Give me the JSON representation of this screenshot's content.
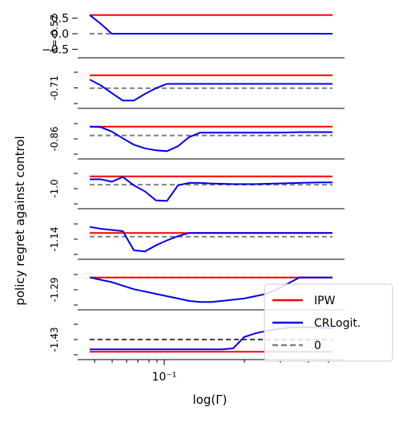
{
  "chart_data": {
    "type": "line",
    "ylabel": "policy regret against control",
    "xlabel": "log(Γ)",
    "x_scale": "log",
    "x_tick_label": "10⁻¹",
    "x_tick_value": 0.1,
    "panels": [
      {
        "label": "λ=-0.57",
        "yticks": [
          "0.5",
          "0.0",
          "−0.5"
        ],
        "series": [
          {
            "name": "IPW",
            "color": "#ff0000",
            "values": [
              0.6,
              0.6,
              0.6,
              0.6,
              0.6,
              0.6,
              0.6,
              0.6,
              0.6,
              0.6,
              0.6,
              0.6,
              0.6,
              0.6,
              0.6,
              0.6,
              0.6,
              0.6,
              0.6,
              0.6,
              0.6,
              0.6,
              0.6
            ]
          },
          {
            "name": "CRLogit.",
            "color": "#0000ee",
            "values": [
              0.6,
              0.32,
              0.0,
              0.0,
              0.0,
              0.0,
              0.0,
              0.0,
              0.0,
              0.0,
              0.0,
              0.0,
              0.0,
              0.0,
              0.0,
              0.0,
              0.0,
              0.0,
              0.0,
              0.0,
              0.0,
              0.0,
              0.0
            ]
          },
          {
            "name": "0",
            "color": "#808080",
            "dashed": true,
            "values": [
              0.0,
              0.0,
              0.0,
              0.0,
              0.0,
              0.0,
              0.0,
              0.0,
              0.0,
              0.0,
              0.0,
              0.0,
              0.0,
              0.0,
              0.0,
              0.0,
              0.0,
              0.0,
              0.0,
              0.0,
              0.0,
              0.0,
              0.0
            ]
          }
        ]
      },
      {
        "label": "-0.71",
        "yticks": [],
        "series": [
          {
            "name": "IPW",
            "color": "#ff0000",
            "values": [
              1.0,
              1.0,
              1.0,
              1.0,
              1.0,
              1.0,
              1.0,
              1.0,
              1.0,
              1.0,
              1.0,
              1.0,
              1.0,
              1.0,
              1.0,
              1.0,
              1.0,
              1.0,
              1.0,
              1.0,
              1.0,
              1.0,
              1.0
            ]
          },
          {
            "name": "CRLogit.",
            "color": "#0000ee",
            "values": [
              0.85,
              0.65,
              0.38,
              0.12,
              0.12,
              0.35,
              0.55,
              0.7,
              0.7,
              0.7,
              0.7,
              0.7,
              0.7,
              0.7,
              0.7,
              0.7,
              0.7,
              0.7,
              0.7,
              0.7,
              0.7,
              0.7,
              0.7
            ]
          },
          {
            "name": "0",
            "color": "#808080",
            "dashed": true,
            "values": [
              0.55,
              0.55,
              0.55,
              0.55,
              0.55,
              0.55,
              0.55,
              0.55,
              0.55,
              0.55,
              0.55,
              0.55,
              0.55,
              0.55,
              0.55,
              0.55,
              0.55,
              0.55,
              0.55,
              0.55,
              0.55,
              0.55,
              0.55
            ]
          }
        ]
      },
      {
        "label": "-0.86",
        "yticks": [],
        "series": [
          {
            "name": "IPW",
            "color": "#ff0000",
            "values": [
              1.0,
              1.0,
              1.0,
              1.0,
              1.0,
              1.0,
              1.0,
              1.0,
              1.0,
              1.0,
              1.0,
              1.0,
              1.0,
              1.0,
              1.0,
              1.0,
              1.0,
              1.0,
              1.0,
              1.0,
              1.0,
              1.0,
              1.0
            ]
          },
          {
            "name": "CRLogit.",
            "color": "#0000ee",
            "values": [
              1.0,
              0.98,
              0.82,
              0.58,
              0.35,
              0.22,
              0.15,
              0.12,
              0.3,
              0.62,
              0.78,
              0.78,
              0.78,
              0.78,
              0.78,
              0.78,
              0.78,
              0.78,
              0.79,
              0.8,
              0.8,
              0.8,
              0.8
            ]
          },
          {
            "name": "0",
            "color": "#808080",
            "dashed": true,
            "values": [
              0.68,
              0.68,
              0.68,
              0.68,
              0.68,
              0.68,
              0.68,
              0.68,
              0.68,
              0.68,
              0.68,
              0.68,
              0.68,
              0.68,
              0.68,
              0.68,
              0.68,
              0.68,
              0.68,
              0.68,
              0.68,
              0.68,
              0.68
            ]
          }
        ]
      },
      {
        "label": "-1.0",
        "yticks": [],
        "series": [
          {
            "name": "IPW",
            "color": "#ff0000",
            "values": [
              1.0,
              1.0,
              1.0,
              1.0,
              1.0,
              1.0,
              1.0,
              1.0,
              1.0,
              1.0,
              1.0,
              1.0,
              1.0,
              1.0,
              1.0,
              1.0,
              1.0,
              1.0,
              1.0,
              1.0,
              1.0,
              1.0,
              1.0
            ]
          },
          {
            "name": "CRLogit.",
            "color": "#0000ee",
            "values": [
              0.9,
              0.9,
              0.82,
              0.98,
              0.7,
              0.5,
              0.2,
              0.18,
              0.7,
              0.78,
              0.78,
              0.76,
              0.75,
              0.74,
              0.74,
              0.74,
              0.75,
              0.76,
              0.77,
              0.78,
              0.79,
              0.8,
              0.8
            ]
          },
          {
            "name": "0",
            "color": "#808080",
            "dashed": true,
            "values": [
              0.72,
              0.72,
              0.72,
              0.72,
              0.72,
              0.72,
              0.72,
              0.72,
              0.72,
              0.72,
              0.72,
              0.72,
              0.72,
              0.72,
              0.72,
              0.72,
              0.72,
              0.72,
              0.72,
              0.72,
              0.72,
              0.72,
              0.72
            ]
          }
        ]
      },
      {
        "label": "-1.14",
        "yticks": [],
        "series": [
          {
            "name": "IPW",
            "color": "#ff0000",
            "values": [
              1.0,
              1.0,
              1.0,
              1.0,
              1.0,
              1.0,
              1.0,
              1.0,
              1.0,
              1.0,
              1.0,
              1.0,
              1.0,
              1.0,
              1.0,
              1.0,
              1.0,
              1.0,
              1.0,
              1.0,
              1.0,
              1.0,
              1.0
            ]
          },
          {
            "name": "CRLogit.",
            "color": "#0000ee",
            "values": [
              1.1,
              1.07,
              1.05,
              1.03,
              0.72,
              0.7,
              0.8,
              0.88,
              0.95,
              1.0,
              1.0,
              1.0,
              1.0,
              1.0,
              1.0,
              1.0,
              1.0,
              1.0,
              1.0,
              1.0,
              1.0,
              1.0,
              1.0
            ]
          },
          {
            "name": "0",
            "color": "#808080",
            "dashed": true,
            "values": [
              0.94,
              0.94,
              0.94,
              0.94,
              0.94,
              0.94,
              0.94,
              0.94,
              0.94,
              0.94,
              0.94,
              0.94,
              0.94,
              0.94,
              0.94,
              0.94,
              0.94,
              0.94,
              0.94,
              0.94,
              0.94,
              0.94,
              0.94
            ]
          }
        ]
      },
      {
        "label": "-1.29",
        "yticks": [],
        "series": [
          {
            "name": "IPW",
            "color": "#ff0000",
            "values": [
              1.0,
              1.0,
              1.0,
              1.0,
              1.0,
              1.0,
              1.0,
              1.0,
              1.0,
              1.0,
              1.0,
              1.0,
              1.0,
              1.0,
              1.0,
              1.0,
              1.0,
              1.0,
              1.0,
              1.0,
              1.0,
              1.0,
              1.0
            ]
          },
          {
            "name": "CRLogit.",
            "color": "#0000ee",
            "values": [
              1.0,
              0.98,
              0.96,
              0.93,
              0.9,
              0.88,
              0.86,
              0.84,
              0.82,
              0.8,
              0.79,
              0.79,
              0.8,
              0.81,
              0.82,
              0.84,
              0.86,
              0.9,
              0.95,
              1.0,
              1.0,
              1.0,
              1.0
            ]
          },
          {
            "name": "0",
            "color": "#808080",
            "dashed": true,
            "values": [
              1.0,
              1.0,
              1.0,
              1.0,
              1.0,
              1.0,
              1.0,
              1.0,
              1.0,
              1.0,
              1.0,
              1.0,
              1.0,
              1.0,
              1.0,
              1.0,
              1.0,
              1.0,
              1.0,
              1.0,
              1.0,
              1.0,
              1.0
            ]
          }
        ]
      },
      {
        "label": "-1.43",
        "yticks": [],
        "series": [
          {
            "name": "IPW",
            "color": "#ff0000",
            "values": [
              0.0,
              0.0,
              0.0,
              0.0,
              0.0,
              0.0,
              0.0,
              0.0,
              0.0,
              0.0,
              0.0,
              0.0,
              0.0,
              0.0,
              0.0,
              0.0,
              0.0,
              0.0,
              0.0,
              0.0,
              0.0,
              0.0,
              0.0
            ]
          },
          {
            "name": "CRLogit.",
            "color": "#0000ee",
            "values": [
              0.1,
              0.1,
              0.1,
              0.1,
              0.1,
              0.1,
              0.1,
              0.1,
              0.1,
              0.1,
              0.1,
              0.1,
              0.1,
              0.14,
              0.6,
              0.75,
              0.85,
              0.92,
              0.98,
              1.0,
              1.0,
              0.98,
              0.96
            ]
          },
          {
            "name": "0",
            "color": "#404040",
            "dashed": true,
            "values": [
              0.5,
              0.5,
              0.5,
              0.5,
              0.5,
              0.5,
              0.5,
              0.5,
              0.5,
              0.5,
              0.5,
              0.5,
              0.5,
              0.5,
              0.5,
              0.5,
              0.5,
              0.5,
              0.5,
              0.5,
              0.5,
              0.5,
              0.5
            ]
          }
        ]
      }
    ],
    "legend": {
      "placement": "lower-right",
      "entries": [
        {
          "label": "IPW",
          "color": "#ff0000",
          "dashed": false
        },
        {
          "label": "CRLogit.",
          "color": "#0000ee",
          "dashed": false
        },
        {
          "label": "0",
          "color": "#808080",
          "dashed": true
        }
      ]
    }
  }
}
